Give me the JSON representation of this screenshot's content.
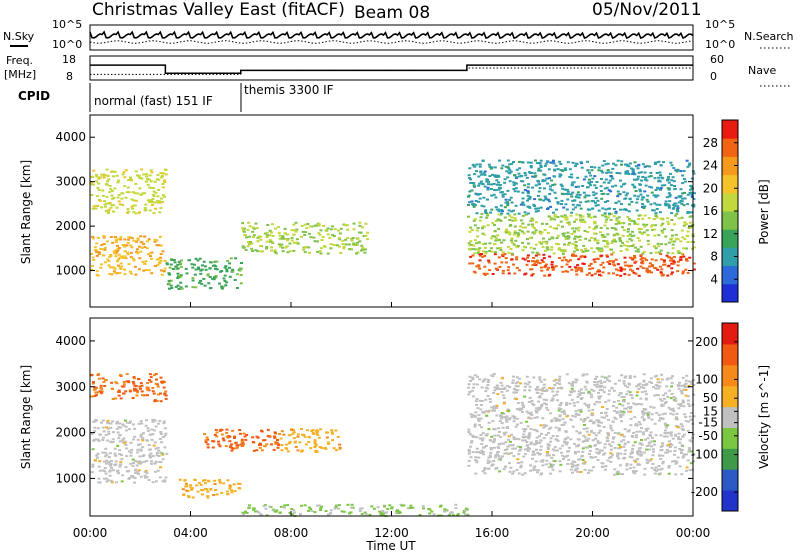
{
  "header": {
    "station": "Christmas Valley East (fitACF)",
    "beam": "Beam 08",
    "date": "05/Nov/2011"
  },
  "time_axis": {
    "label": "Time UT",
    "ticks": [
      "00:00",
      "04:00",
      "08:00",
      "12:00",
      "16:00",
      "20:00",
      "00:00"
    ]
  },
  "noise_panel": {
    "left_label": "N.Sky",
    "right_label": "N.Search",
    "left_ticks": [
      "10^5",
      "10^0"
    ],
    "right_ticks": [
      "10^5",
      "10^0"
    ]
  },
  "freq_panel": {
    "left_label_1": "Freq.",
    "left_label_2": "[MHz]",
    "right_label": "Nave",
    "left_ticks": [
      "18",
      "8"
    ],
    "right_ticks": [
      "60",
      "0"
    ],
    "freq_steps": [
      {
        "t0": 0.0,
        "t1": 3.0,
        "freq": 14.2
      },
      {
        "t0": 3.0,
        "t1": 6.0,
        "freq": 10.8
      },
      {
        "t0": 6.0,
        "t1": 15.0,
        "freq": 12.0
      },
      {
        "t0": 15.0,
        "t1": 24.0,
        "freq": 14.2
      }
    ],
    "nave_steps": [
      {
        "t0": 0.0,
        "t1": 3.0,
        "nave": 14
      },
      {
        "t0": 3.0,
        "t1": 6.0,
        "nave": 14
      },
      {
        "t0": 6.0,
        "t1": 15.0,
        "nave": 24
      },
      {
        "t0": 15.0,
        "t1": 24.0,
        "nave": 30
      }
    ]
  },
  "cpid_panel": {
    "label": "CPID",
    "modes": [
      {
        "name": "normal (fast) 151 IF",
        "t0": 0.0,
        "t1": 6.0
      },
      {
        "name": "themis 3300 IF",
        "t0": 6.0,
        "t1": 24.0
      }
    ]
  },
  "chart_data": [
    {
      "type": "heatmap",
      "quantity": "Power",
      "ylabel": "Slant Range [km]",
      "xlabel": "Time UT",
      "x_range_hours": [
        0,
        24
      ],
      "ylim_km": [
        180,
        4500
      ],
      "yticks": [
        1000,
        2000,
        3000,
        4000
      ],
      "colorbar": {
        "label": "Power [dB]",
        "range": [
          0,
          32
        ],
        "ticks": [
          4,
          8,
          12,
          16,
          20,
          24,
          28
        ],
        "colors": [
          "#1f2fd6",
          "#2b6ad8",
          "#2f9ea8",
          "#3aa35a",
          "#7fc24a",
          "#c2d83c",
          "#f5c22a",
          "#f59a1c",
          "#f06414",
          "#e81b10"
        ]
      },
      "features": [
        {
          "t0": 0.0,
          "t1": 3.0,
          "r0": 900,
          "r1": 1800,
          "value": 22
        },
        {
          "t0": 0.0,
          "t1": 3.0,
          "r0": 2300,
          "r1": 3300,
          "value": 18
        },
        {
          "t0": 3.0,
          "t1": 6.0,
          "r0": 600,
          "r1": 1300,
          "value": 12
        },
        {
          "t0": 6.0,
          "t1": 11.0,
          "r0": 1400,
          "r1": 2100,
          "value": 16
        },
        {
          "t0": 15.0,
          "t1": 24.0,
          "r0": 900,
          "r1": 1400,
          "value": 28
        },
        {
          "t0": 15.0,
          "t1": 24.0,
          "r0": 1400,
          "r1": 2300,
          "value": 16
        },
        {
          "t0": 15.0,
          "t1": 24.0,
          "r0": 2300,
          "r1": 3500,
          "value": 8
        }
      ]
    },
    {
      "type": "heatmap",
      "quantity": "Velocity",
      "ylabel": "Slant Range [km]",
      "xlabel": "Time UT",
      "x_range_hours": [
        0,
        24
      ],
      "ylim_km": [
        180,
        4500
      ],
      "yticks": [
        1000,
        2000,
        3000,
        4000
      ],
      "colorbar": {
        "label": "Velocity [m s^-1]",
        "range": [
          -250,
          250
        ],
        "ticks": [
          200,
          100,
          50,
          15,
          -15,
          -50,
          -100,
          -200
        ],
        "colors": [
          "#2133c8",
          "#2c58c6",
          "#3e9a48",
          "#7bc742",
          "#c0c0c0",
          "#f5b024",
          "#f58a1a",
          "#f05a12",
          "#e41b10"
        ]
      },
      "features": [
        {
          "t0": 0.0,
          "t1": 3.0,
          "r0": 2700,
          "r1": 3300,
          "value": 150
        },
        {
          "t0": 0.0,
          "t1": 3.0,
          "r0": 900,
          "r1": 2300,
          "value": 0
        },
        {
          "t0": 3.5,
          "t1": 6.0,
          "r0": 600,
          "r1": 1000,
          "value": 60
        },
        {
          "t0": 4.5,
          "t1": 7.5,
          "r0": 1600,
          "r1": 2100,
          "value": 150
        },
        {
          "t0": 7.5,
          "t1": 10.0,
          "r0": 1600,
          "r1": 2100,
          "value": 60
        },
        {
          "t0": 6.0,
          "t1": 15.0,
          "r0": 200,
          "r1": 450,
          "value": -40
        },
        {
          "t0": 15.0,
          "t1": 24.0,
          "r0": 1100,
          "r1": 3300,
          "value": 0
        }
      ]
    }
  ]
}
